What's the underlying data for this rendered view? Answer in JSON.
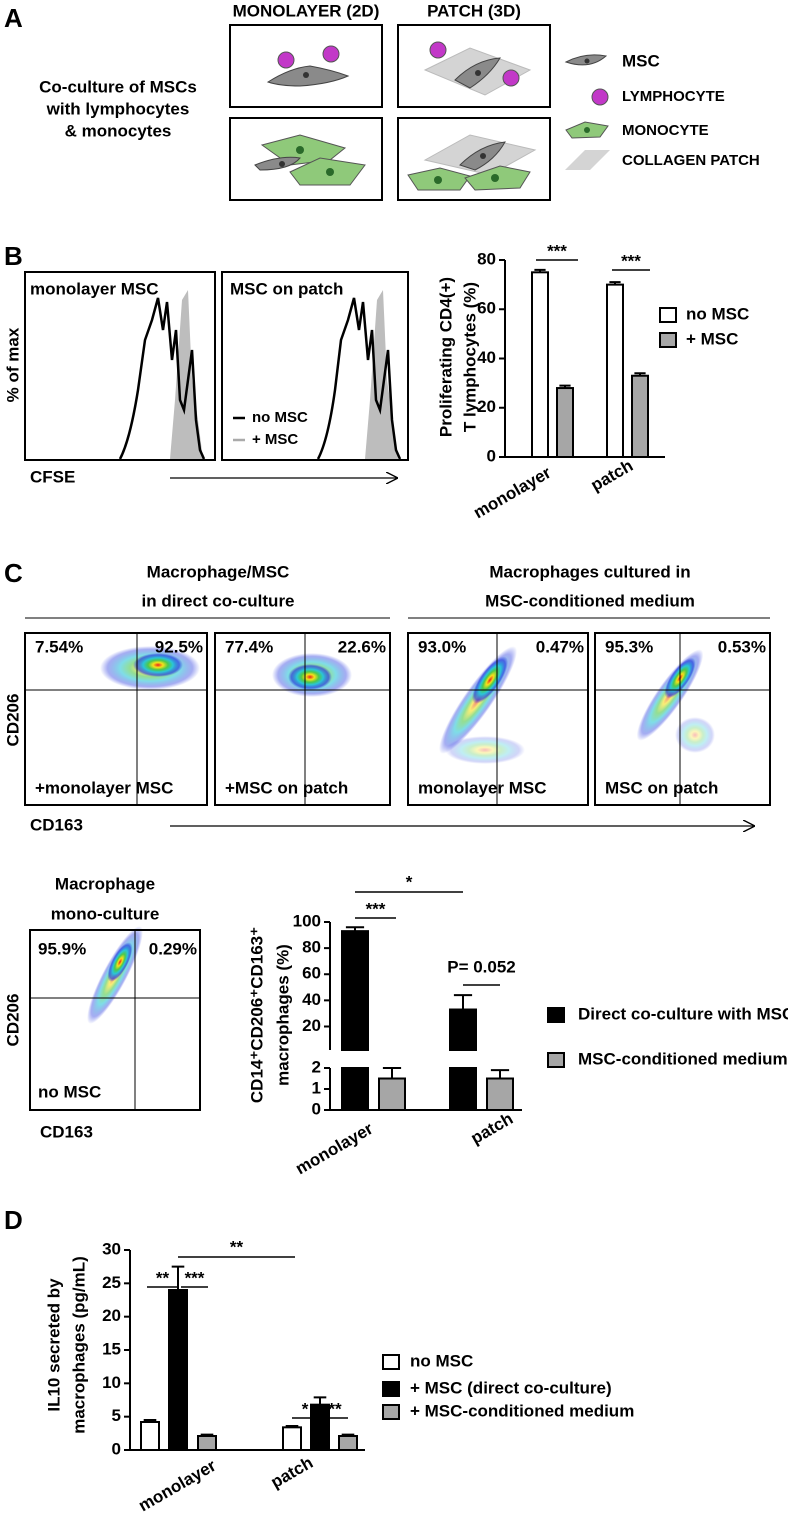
{
  "panel_labels": [
    "A",
    "B",
    "C",
    "D"
  ],
  "panel_a": {
    "headers": [
      "MONOLAYER (2D)",
      "PATCH (3D)"
    ],
    "description": [
      "Co-culture of MSCs",
      "with lymphocytes",
      "& monocytes"
    ],
    "legend": [
      "MSC",
      "LYMPHOCYTE",
      "MONOCYTE",
      "COLLAGEN PATCH"
    ]
  },
  "panel_b_histograms": {
    "y_label": "% of max",
    "x_label": "CFSE",
    "plots": [
      "monolayer MSC",
      "MSC on patch"
    ],
    "legend": [
      "no MSC",
      "+ MSC"
    ]
  },
  "panel_c_flow": {
    "titles": [
      [
        "Macrophage/MSC",
        "in direct co-culture"
      ],
      [
        "Macrophages cultured in",
        "MSC-conditioned medium"
      ]
    ],
    "y_label": "CD206",
    "x_label": "CD163",
    "plots": [
      {
        "label": "+monolayer MSC",
        "quadrants": [
          "7.54%",
          "92.5%"
        ]
      },
      {
        "label": "+MSC on patch",
        "quadrants": [
          "77.4%",
          "22.6%"
        ]
      },
      {
        "label": "monolayer MSC",
        "quadrants": [
          "93.0%",
          "0.47%"
        ]
      },
      {
        "label": "MSC on patch",
        "quadrants": [
          "95.3%",
          "0.53%"
        ]
      }
    ],
    "mono_culture": {
      "title": [
        "Macrophage",
        "mono-culture"
      ],
      "label": "no MSC",
      "quadrants": [
        "95.9%",
        "0.29%"
      ]
    }
  },
  "chart_data": [
    {
      "type": "bar",
      "y_label": [
        "Proliferating CD4(+)",
        "T lymphocytes (%)"
      ],
      "categories": [
        "monolayer",
        "patch"
      ],
      "series": [
        {
          "name": "no MSC",
          "color": "#ffffff",
          "values": [
            75,
            70
          ],
          "errors": [
            1,
            1
          ]
        },
        {
          "name": "+ MSC",
          "color": "#a6a6a6",
          "values": [
            28,
            33
          ],
          "errors": [
            1,
            1
          ]
        }
      ],
      "ylim": [
        0,
        80
      ],
      "yticks": [
        0,
        20,
        40,
        60,
        80
      ],
      "significance": [
        "***",
        "***"
      ]
    },
    {
      "type": "bar",
      "y_label": [
        "CD14⁺CD206⁺CD163⁺",
        "macrophages (%)"
      ],
      "categories": [
        "monolayer",
        "patch"
      ],
      "series": [
        {
          "name": "Direct  co-culture with MSC",
          "color": "#000000",
          "values": [
            93,
            33
          ],
          "errors": [
            3,
            11
          ]
        },
        {
          "name": "MSC-conditioned medium",
          "color": "#a6a6a6",
          "values": [
            1.5,
            1.5
          ],
          "errors": [
            0.5,
            0.4
          ]
        }
      ],
      "ylim": [
        0,
        100
      ],
      "broken_axis_at": 2,
      "yticks": [
        0,
        1,
        2,
        20,
        40,
        60,
        80,
        100
      ],
      "significance": [
        "*",
        "***",
        "P= 0.052"
      ]
    },
    {
      "type": "bar",
      "y_label": [
        "IL10 secreted by",
        "macrophages (pg/mL)"
      ],
      "categories": [
        "monolayer",
        "patch"
      ],
      "series": [
        {
          "name": "no MSC",
          "color": "#ffffff",
          "values": [
            4.2,
            3.4
          ],
          "errors": [
            0.3,
            0.2
          ]
        },
        {
          "name": "+ MSC (direct co-culture)",
          "color": "#000000",
          "values": [
            24,
            6.8
          ],
          "errors": [
            3.5,
            1.1
          ]
        },
        {
          "name": "+ MSC-conditioned medium",
          "color": "#a6a6a6",
          "values": [
            2.1,
            2.1
          ],
          "errors": [
            0.2,
            0.2
          ]
        }
      ],
      "ylim": [
        0,
        30
      ],
      "yticks": [
        0,
        5,
        10,
        15,
        20,
        25,
        30
      ],
      "significance": [
        "**",
        "**",
        "***",
        "*",
        "**"
      ]
    }
  ]
}
